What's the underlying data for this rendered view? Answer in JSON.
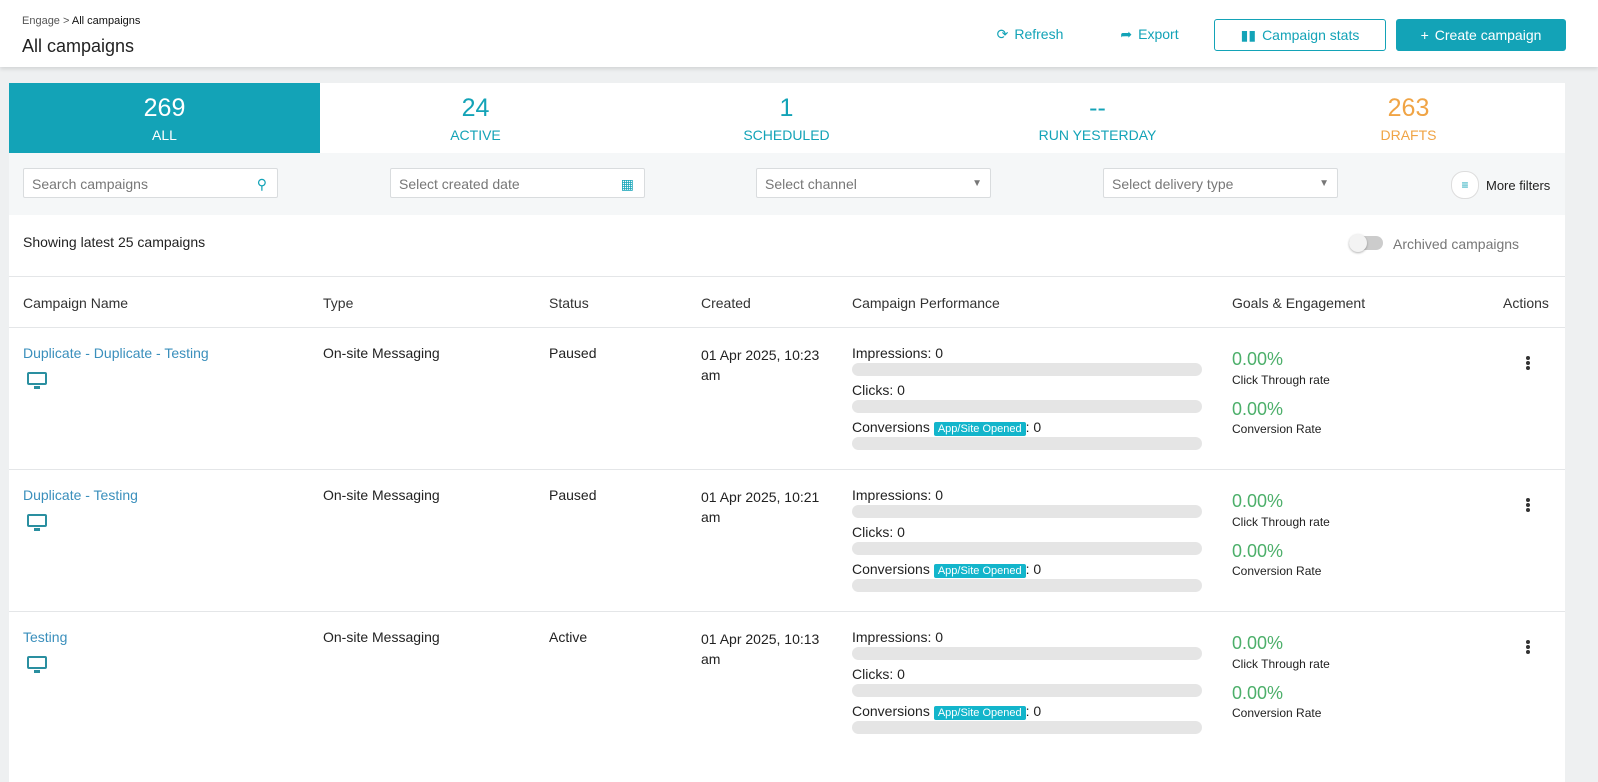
{
  "header": {
    "breadcrumb": {
      "parent": "Engage",
      "separator": ">",
      "current": "All campaigns"
    },
    "title": "All campaigns",
    "actions": [
      "Refresh",
      "Export",
      "Campaign stats",
      "Create campaign"
    ]
  },
  "tabs": [
    {
      "count": 269,
      "label": "ALL"
    },
    {
      "count": 24,
      "label": "ACTIVE"
    },
    {
      "count": 1,
      "label": "SCHEDULED"
    },
    {
      "count": "--",
      "label": "RUN YESTERDAY"
    },
    {
      "count": 263,
      "label": "DRAFTS"
    }
  ],
  "filters": {
    "search": "Search campaigns",
    "date": "Select created date",
    "channel": "Select channel",
    "delivery": "Select delivery type",
    "more": "More filters"
  },
  "summary": {
    "showing": "Showing latest 25 campaigns",
    "archived": "Archived campaigns"
  },
  "table": {
    "columns": [
      "Campaign Name",
      "Type",
      "Status",
      "Created",
      "Campaign Performance",
      "Goals & Engagement",
      "Actions"
    ],
    "rows": [
      {
        "name": "Duplicate - Duplicate - Testing",
        "type": "On-site Messaging",
        "status": "Paused",
        "created": "01 Apr 2025, 10:23 am",
        "impressions": "Impressions: 0",
        "clicks": "Clicks: 0",
        "conversions": "Conversions",
        "badge": "App/Site Opened",
        "conversions_value": ": 0",
        "ctr": "0.00%",
        "ctr_label": "Click Through rate",
        "cr": "0.00%",
        "cr_label": "Conversion Rate"
      },
      {
        "name": "Duplicate - Testing",
        "type": "On-site Messaging",
        "status": "Paused",
        "created": "01 Apr 2025, 10:21 am",
        "impressions": "Impressions: 0",
        "clicks": "Clicks: 0",
        "conversions": "Conversions",
        "badge": "App/Site Opened",
        "conversions_value": ": 0",
        "ctr": "0.00%",
        "ctr_label": "Click Through rate",
        "cr": "0.00%",
        "cr_label": "Conversion Rate"
      },
      {
        "name": "Testing",
        "type": "On-site Messaging",
        "status": "Active",
        "created": "01 Apr 2025, 10:13 am",
        "impressions": "Impressions: 0",
        "clicks": "Clicks: 0",
        "conversions": "Conversions",
        "badge": "App/Site Opened",
        "conversions_value": ": 0",
        "ctr": "0.00%",
        "ctr_label": "Click Through rate",
        "cr": "0.00%",
        "cr_label": "Conversion Rate"
      }
    ]
  }
}
